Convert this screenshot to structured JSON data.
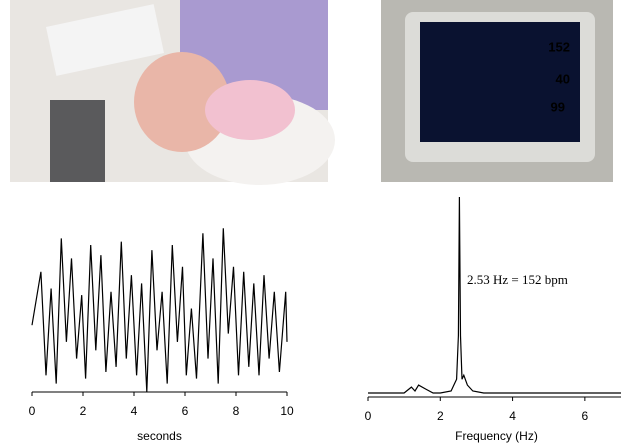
{
  "photos": {
    "monitor_readings": [
      "152",
      "40",
      "99"
    ]
  },
  "chart_data": [
    {
      "type": "line",
      "x_label": "seconds",
      "xlim": [
        0,
        10
      ],
      "xticks": [
        0,
        2,
        4,
        6,
        8,
        10
      ],
      "ylim": [
        0,
        1
      ],
      "color": "#000000",
      "x": [
        0,
        0.35,
        0.55,
        0.75,
        0.95,
        1.15,
        1.35,
        1.55,
        1.75,
        1.95,
        2.1,
        2.3,
        2.5,
        2.7,
        2.9,
        3.1,
        3.3,
        3.5,
        3.7,
        3.9,
        4.1,
        4.3,
        4.5,
        4.7,
        4.9,
        5.1,
        5.3,
        5.5,
        5.7,
        5.9,
        6.05,
        6.25,
        6.45,
        6.7,
        6.9,
        7.1,
        7.3,
        7.5,
        7.7,
        7.9,
        8.1,
        8.3,
        8.5,
        8.7,
        8.9,
        9.1,
        9.3,
        9.5,
        9.7,
        9.95,
        10
      ],
      "values": [
        0.4,
        0.72,
        0.1,
        0.62,
        0.05,
        0.92,
        0.3,
        0.8,
        0.2,
        0.58,
        0.08,
        0.88,
        0.25,
        0.82,
        0.12,
        0.6,
        0.15,
        0.9,
        0.2,
        0.7,
        0.1,
        0.65,
        0,
        0.85,
        0.25,
        0.6,
        0.05,
        0.88,
        0.3,
        0.75,
        0.1,
        0.5,
        0.08,
        0.95,
        0.2,
        0.8,
        0.05,
        0.98,
        0.35,
        0.75,
        0.1,
        0.72,
        0.15,
        0.65,
        0.1,
        0.7,
        0.2,
        0.6,
        0.12,
        0.6,
        0.3
      ]
    },
    {
      "type": "line",
      "x_label": "Frequency (Hz)",
      "annotation": "2.53 Hz = 152 bpm",
      "xlim": [
        0,
        7
      ],
      "xticks": [
        0,
        2,
        4,
        6
      ],
      "ylim": [
        0,
        1
      ],
      "color": "#000000",
      "x": [
        0,
        0.5,
        1,
        1.2,
        1.3,
        1.4,
        1.6,
        1.8,
        2.0,
        2.3,
        2.45,
        2.5,
        2.53,
        2.56,
        2.6,
        2.65,
        2.75,
        2.9,
        3.2,
        4,
        5,
        6,
        7
      ],
      "values": [
        0.01,
        0.01,
        0.01,
        0.04,
        0.02,
        0.05,
        0.03,
        0.01,
        0.01,
        0.02,
        0.08,
        0.3,
        1,
        0.3,
        0.08,
        0.1,
        0.05,
        0.02,
        0.01,
        0.01,
        0.01,
        0.01,
        0.01
      ]
    }
  ]
}
